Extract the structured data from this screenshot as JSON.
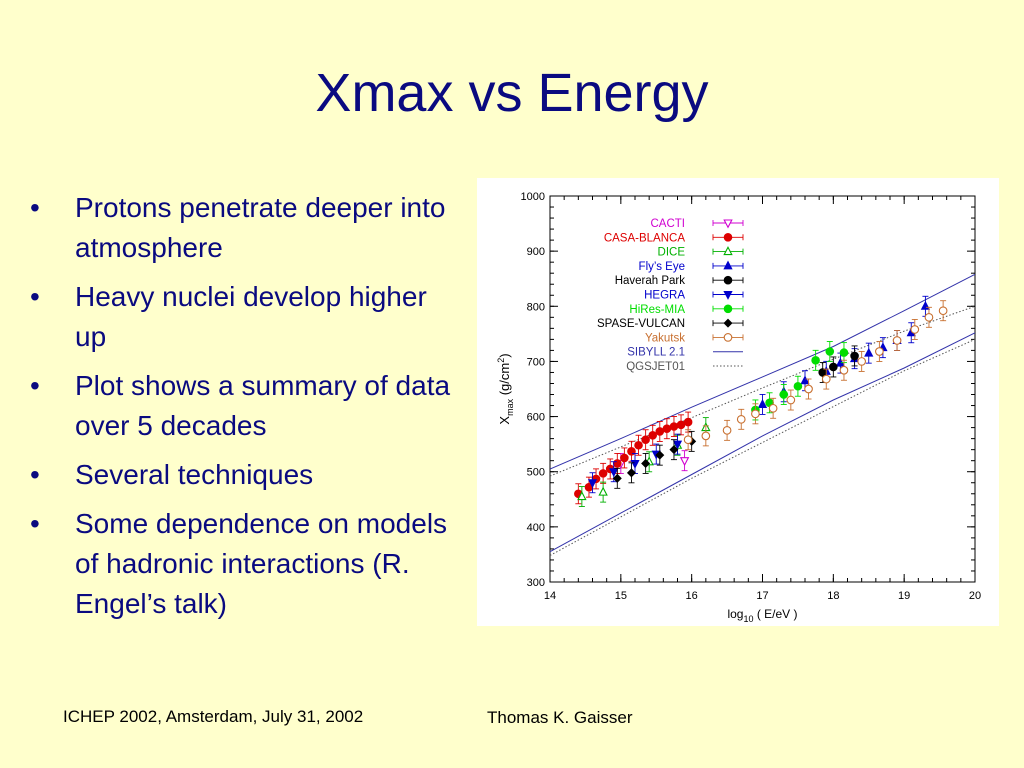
{
  "slide": {
    "title": "Xmax vs Energy",
    "bullets": [
      "Protons penetrate deeper into atmosphere",
      "Heavy nuclei develop higher up",
      "Plot shows a summary of data over 5 decades",
      "Several techniques",
      "Some dependence on models of hadronic interactions (R. Engel’s talk)"
    ],
    "bullet_marker": "•",
    "footer_left": "ICHEP 2002, Amsterdam, July 31, 2002",
    "footer_right": "Thomas K. Gaisser"
  },
  "colors": {
    "background": "#ffffcc",
    "title": "#0a0a80",
    "plot_background": "#ffffff"
  },
  "chart_data": {
    "type": "scatter",
    "title": "",
    "xlabel": "log10 ( E/eV )",
    "xlabel_main": "log",
    "xlabel_sub": "10",
    "xlabel_rest": " ( E/eV )",
    "ylabel": "Xmax (g/cm2)",
    "ylabel_main": "X",
    "ylabel_sub": "max",
    "ylabel_units_pre": "(g/cm",
    "ylabel_units_sup": "2",
    "ylabel_units_post": ")",
    "xlim": [
      14,
      20
    ],
    "ylim": [
      300,
      1000
    ],
    "xticks": [
      14,
      15,
      16,
      17,
      18,
      19,
      20
    ],
    "yticks": [
      300,
      400,
      500,
      600,
      700,
      800,
      900,
      1000
    ],
    "grid": false,
    "legend_position": "top-left",
    "series": [
      {
        "name": "CACTI",
        "color": "#d000d0",
        "marker": "triangle-down-open",
        "errorbars": true,
        "points": [
          [
            15.0,
            515
          ],
          [
            15.9,
            520
          ]
        ]
      },
      {
        "name": "CASA-BLANCA",
        "color": "#dd0000",
        "marker": "circle-filled",
        "errorbars": true,
        "points": [
          [
            14.4,
            460
          ],
          [
            14.55,
            472
          ],
          [
            14.65,
            487
          ],
          [
            14.75,
            497
          ],
          [
            14.85,
            505
          ],
          [
            14.95,
            515
          ],
          [
            15.05,
            525
          ],
          [
            15.15,
            537
          ],
          [
            15.25,
            548
          ],
          [
            15.35,
            558
          ],
          [
            15.45,
            566
          ],
          [
            15.55,
            573
          ],
          [
            15.65,
            578
          ],
          [
            15.75,
            582
          ],
          [
            15.85,
            585
          ],
          [
            15.95,
            590
          ]
        ]
      },
      {
        "name": "DICE",
        "color": "#00b000",
        "marker": "triangle-up-open",
        "errorbars": true,
        "points": [
          [
            14.45,
            455
          ],
          [
            14.75,
            463
          ],
          [
            15.4,
            518
          ],
          [
            15.8,
            548
          ],
          [
            16.2,
            580
          ]
        ]
      },
      {
        "name": "Fly’s Eye",
        "color": "#0000cc",
        "marker": "triangle-up-filled",
        "errorbars": true,
        "points": [
          [
            17.0,
            622
          ],
          [
            17.3,
            645
          ],
          [
            17.6,
            665
          ],
          [
            17.9,
            682
          ],
          [
            18.1,
            697
          ],
          [
            18.3,
            705
          ],
          [
            18.5,
            715
          ],
          [
            18.7,
            725
          ],
          [
            18.9,
            738
          ],
          [
            19.1,
            752
          ],
          [
            19.3,
            800
          ]
        ]
      },
      {
        "name": "Haverah Park",
        "color": "#000000",
        "marker": "circle-filled",
        "errorbars": true,
        "points": [
          [
            17.85,
            680
          ],
          [
            18.0,
            690
          ],
          [
            18.3,
            710
          ]
        ]
      },
      {
        "name": "HEGRA",
        "color": "#0000cc",
        "marker": "triangle-down-filled",
        "errorbars": true,
        "points": [
          [
            14.6,
            480
          ],
          [
            14.9,
            500
          ],
          [
            15.2,
            515
          ],
          [
            15.5,
            532
          ],
          [
            15.8,
            550
          ]
        ]
      },
      {
        "name": "HiRes-MIA",
        "color": "#00dd00",
        "marker": "circle-filled",
        "errorbars": true,
        "points": [
          [
            16.9,
            612
          ],
          [
            17.1,
            625
          ],
          [
            17.3,
            640
          ],
          [
            17.5,
            655
          ],
          [
            17.75,
            702
          ],
          [
            17.95,
            718
          ],
          [
            18.15,
            716
          ]
        ]
      },
      {
        "name": "SPASE-VULCAN",
        "color": "#000000",
        "marker": "diamond-filled",
        "errorbars": true,
        "points": [
          [
            14.95,
            488
          ],
          [
            15.15,
            498
          ],
          [
            15.35,
            515
          ],
          [
            15.55,
            530
          ],
          [
            15.75,
            540
          ],
          [
            16.0,
            555
          ]
        ]
      },
      {
        "name": "Yakutsk",
        "color": "#c87030",
        "marker": "circle-open",
        "errorbars": true,
        "points": [
          [
            15.95,
            558
          ],
          [
            16.2,
            565
          ],
          [
            16.5,
            575
          ],
          [
            16.7,
            595
          ],
          [
            16.9,
            605
          ],
          [
            17.15,
            615
          ],
          [
            17.4,
            630
          ],
          [
            17.65,
            650
          ],
          [
            17.9,
            668
          ],
          [
            18.15,
            684
          ],
          [
            18.4,
            700
          ],
          [
            18.65,
            718
          ],
          [
            18.9,
            738
          ],
          [
            19.15,
            758
          ],
          [
            19.35,
            780
          ],
          [
            19.55,
            792
          ]
        ]
      }
    ],
    "model_lines": [
      {
        "name": "SIBYLL 2.1",
        "color": "#3333aa",
        "style": "solid",
        "upper": [
          [
            14.0,
            505
          ],
          [
            15.0,
            560
          ],
          [
            16.0,
            617
          ],
          [
            17.0,
            672
          ],
          [
            18.0,
            727
          ],
          [
            19.0,
            792
          ],
          [
            20.0,
            858
          ]
        ],
        "lower": [
          [
            14.0,
            355
          ],
          [
            15.0,
            425
          ],
          [
            16.0,
            495
          ],
          [
            17.0,
            565
          ],
          [
            18.0,
            630
          ],
          [
            19.0,
            688
          ],
          [
            20.0,
            752
          ]
        ]
      },
      {
        "name": "QGSJET01",
        "color": "#555555",
        "style": "dotted",
        "upper": [
          [
            14.0,
            492
          ],
          [
            15.0,
            545
          ],
          [
            16.0,
            598
          ],
          [
            17.0,
            652
          ],
          [
            18.0,
            704
          ],
          [
            19.0,
            755
          ],
          [
            20.0,
            800
          ]
        ],
        "lower": [
          [
            14.0,
            348
          ],
          [
            15.0,
            418
          ],
          [
            16.0,
            488
          ],
          [
            17.0,
            553
          ],
          [
            18.0,
            618
          ],
          [
            19.0,
            683
          ],
          [
            20.0,
            740
          ]
        ]
      }
    ]
  }
}
